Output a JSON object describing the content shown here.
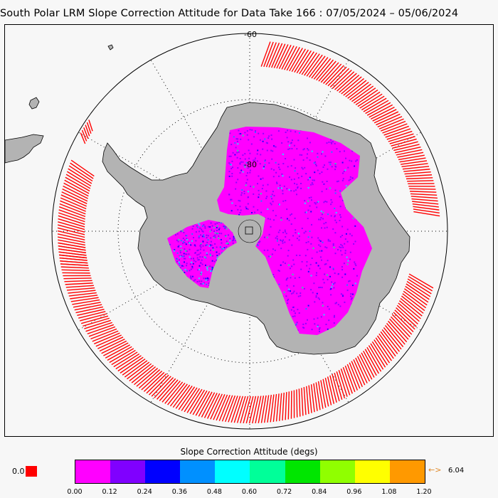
{
  "title": "South Polar LRM Slope Correction Attitude for Data Take 166 : 07/05/2024 – 05/06/2024",
  "map": {
    "projection": "south-polar-stereographic",
    "lat_label_outer": "-60",
    "lat_label_inner": "-80",
    "colors": {
      "background": "#f7f7f7",
      "land": "#b3b3b3",
      "coast": "#000000",
      "orbit_tracks": "#ff0000",
      "grid": "#000000",
      "dominant_data": "#ff00ff"
    }
  },
  "colorbar": {
    "title": "Slope Correction Attitude (degs)",
    "colors": [
      "#ff00ff",
      "#8000ff",
      "#0000ff",
      "#0090ff",
      "#00ffff",
      "#00ff99",
      "#00e600",
      "#90ff00",
      "#ffff00",
      "#ff9900"
    ],
    "ticks": [
      "0.00",
      "0.12",
      "0.24",
      "0.36",
      "0.48",
      "0.60",
      "0.72",
      "0.84",
      "0.96",
      "1.08",
      "1.20"
    ],
    "nodata_label": "0.0",
    "nodata_color": "#ff0000",
    "max_arrow": "←>",
    "max_label": "6.04"
  }
}
